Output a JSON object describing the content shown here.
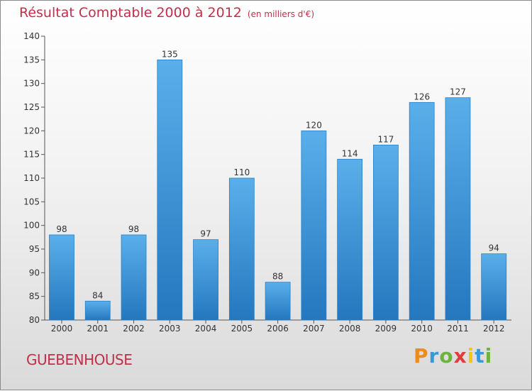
{
  "chart_data": {
    "type": "bar",
    "title": "Résultat Comptable 2000 à 2012",
    "subtitle": "(en milliers d'€)",
    "categories": [
      "2000",
      "2001",
      "2002",
      "2003",
      "2004",
      "2005",
      "2006",
      "2007",
      "2008",
      "2009",
      "2010",
      "2011",
      "2012"
    ],
    "values": [
      98,
      84,
      98,
      135,
      97,
      110,
      88,
      120,
      114,
      117,
      126,
      127,
      94
    ],
    "ylim": [
      80,
      140
    ],
    "yticks": [
      80,
      85,
      90,
      95,
      100,
      105,
      110,
      115,
      120,
      125,
      130,
      135,
      140
    ],
    "xlabel": "",
    "ylabel": "",
    "bar_color": "#3d97dc",
    "bar_color_light": "#5aafea",
    "bar_color_dark": "#2577be"
  },
  "commune": "GUEBENHOUSE",
  "brand": {
    "letters": [
      "P",
      "r",
      "o",
      "x",
      "i",
      "t",
      "i"
    ],
    "colors": [
      "#f08a1c",
      "#3a9ad9",
      "#6cb33f",
      "#e23b3b",
      "#f0c419",
      "#3a9ad9",
      "#6cb33f"
    ]
  }
}
